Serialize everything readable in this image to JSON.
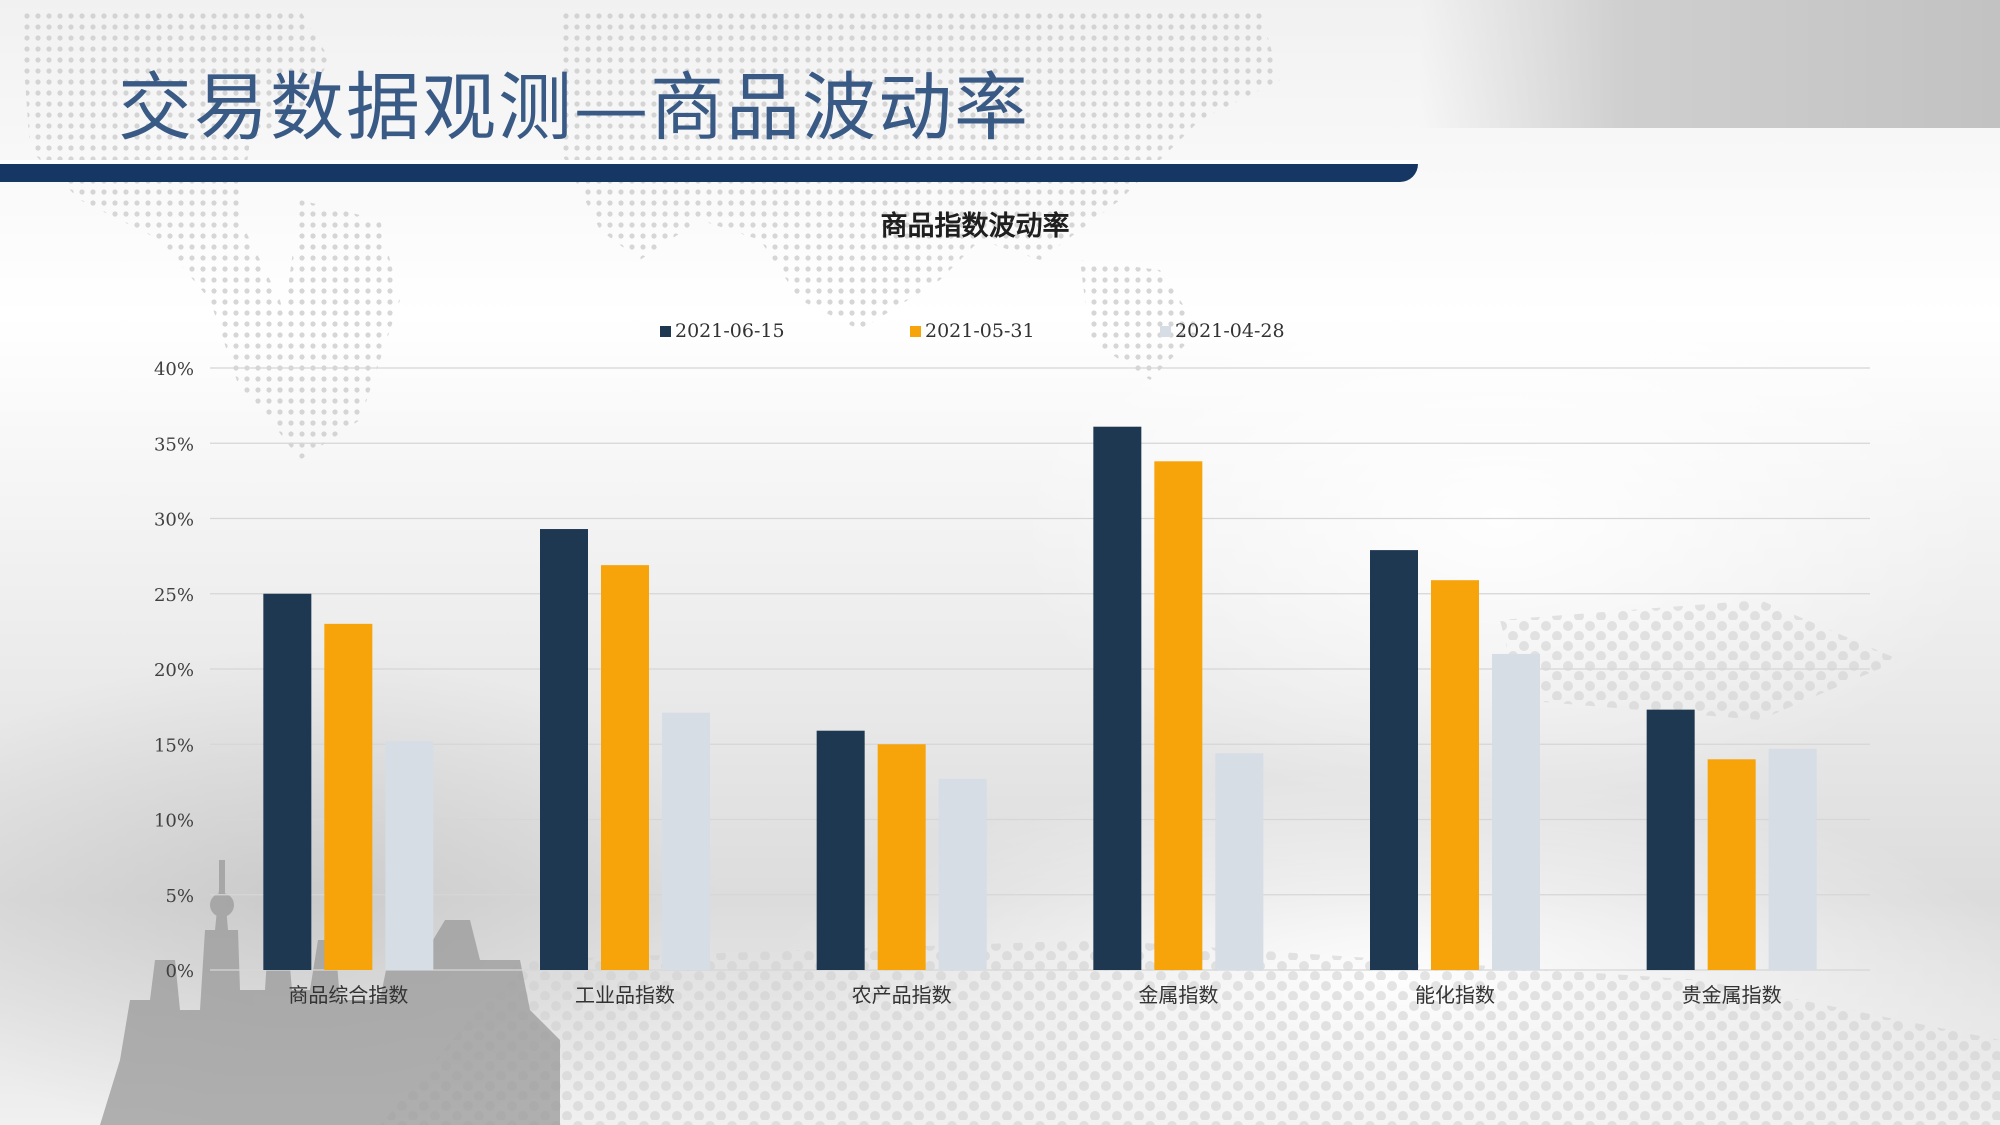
{
  "page": {
    "title": "交易数据观测—商品波动率"
  },
  "colors": {
    "title": "#3a5a86",
    "title_rule": "#163764",
    "series": [
      "#1f3852",
      "#f7a30a",
      "#d6dde5"
    ],
    "grid": "#d6d6d6"
  },
  "chart_data": {
    "type": "bar",
    "title": "商品指数波动率",
    "xlabel": "",
    "ylabel": "",
    "categories": [
      "商品综合指数",
      "工业品指数",
      "农产品指数",
      "金属指数",
      "能化指数",
      "贵金属指数"
    ],
    "series": [
      {
        "name": "2021-06-15",
        "values": [
          25.0,
          29.3,
          15.9,
          36.1,
          27.9,
          17.3
        ]
      },
      {
        "name": "2021-05-31",
        "values": [
          23.0,
          26.9,
          15.0,
          33.8,
          25.9,
          14.0
        ]
      },
      {
        "name": "2021-04-28",
        "values": [
          15.2,
          17.1,
          12.7,
          14.4,
          21.0,
          14.7
        ]
      }
    ],
    "ylim": [
      0,
      40
    ],
    "yticks": [
      0,
      5,
      10,
      15,
      20,
      25,
      30,
      35,
      40
    ],
    "ytick_labels": [
      "0%",
      "5%",
      "10%",
      "15%",
      "20%",
      "25%",
      "30%",
      "35%",
      "40%"
    ],
    "grid": true,
    "legend": "top-center"
  }
}
